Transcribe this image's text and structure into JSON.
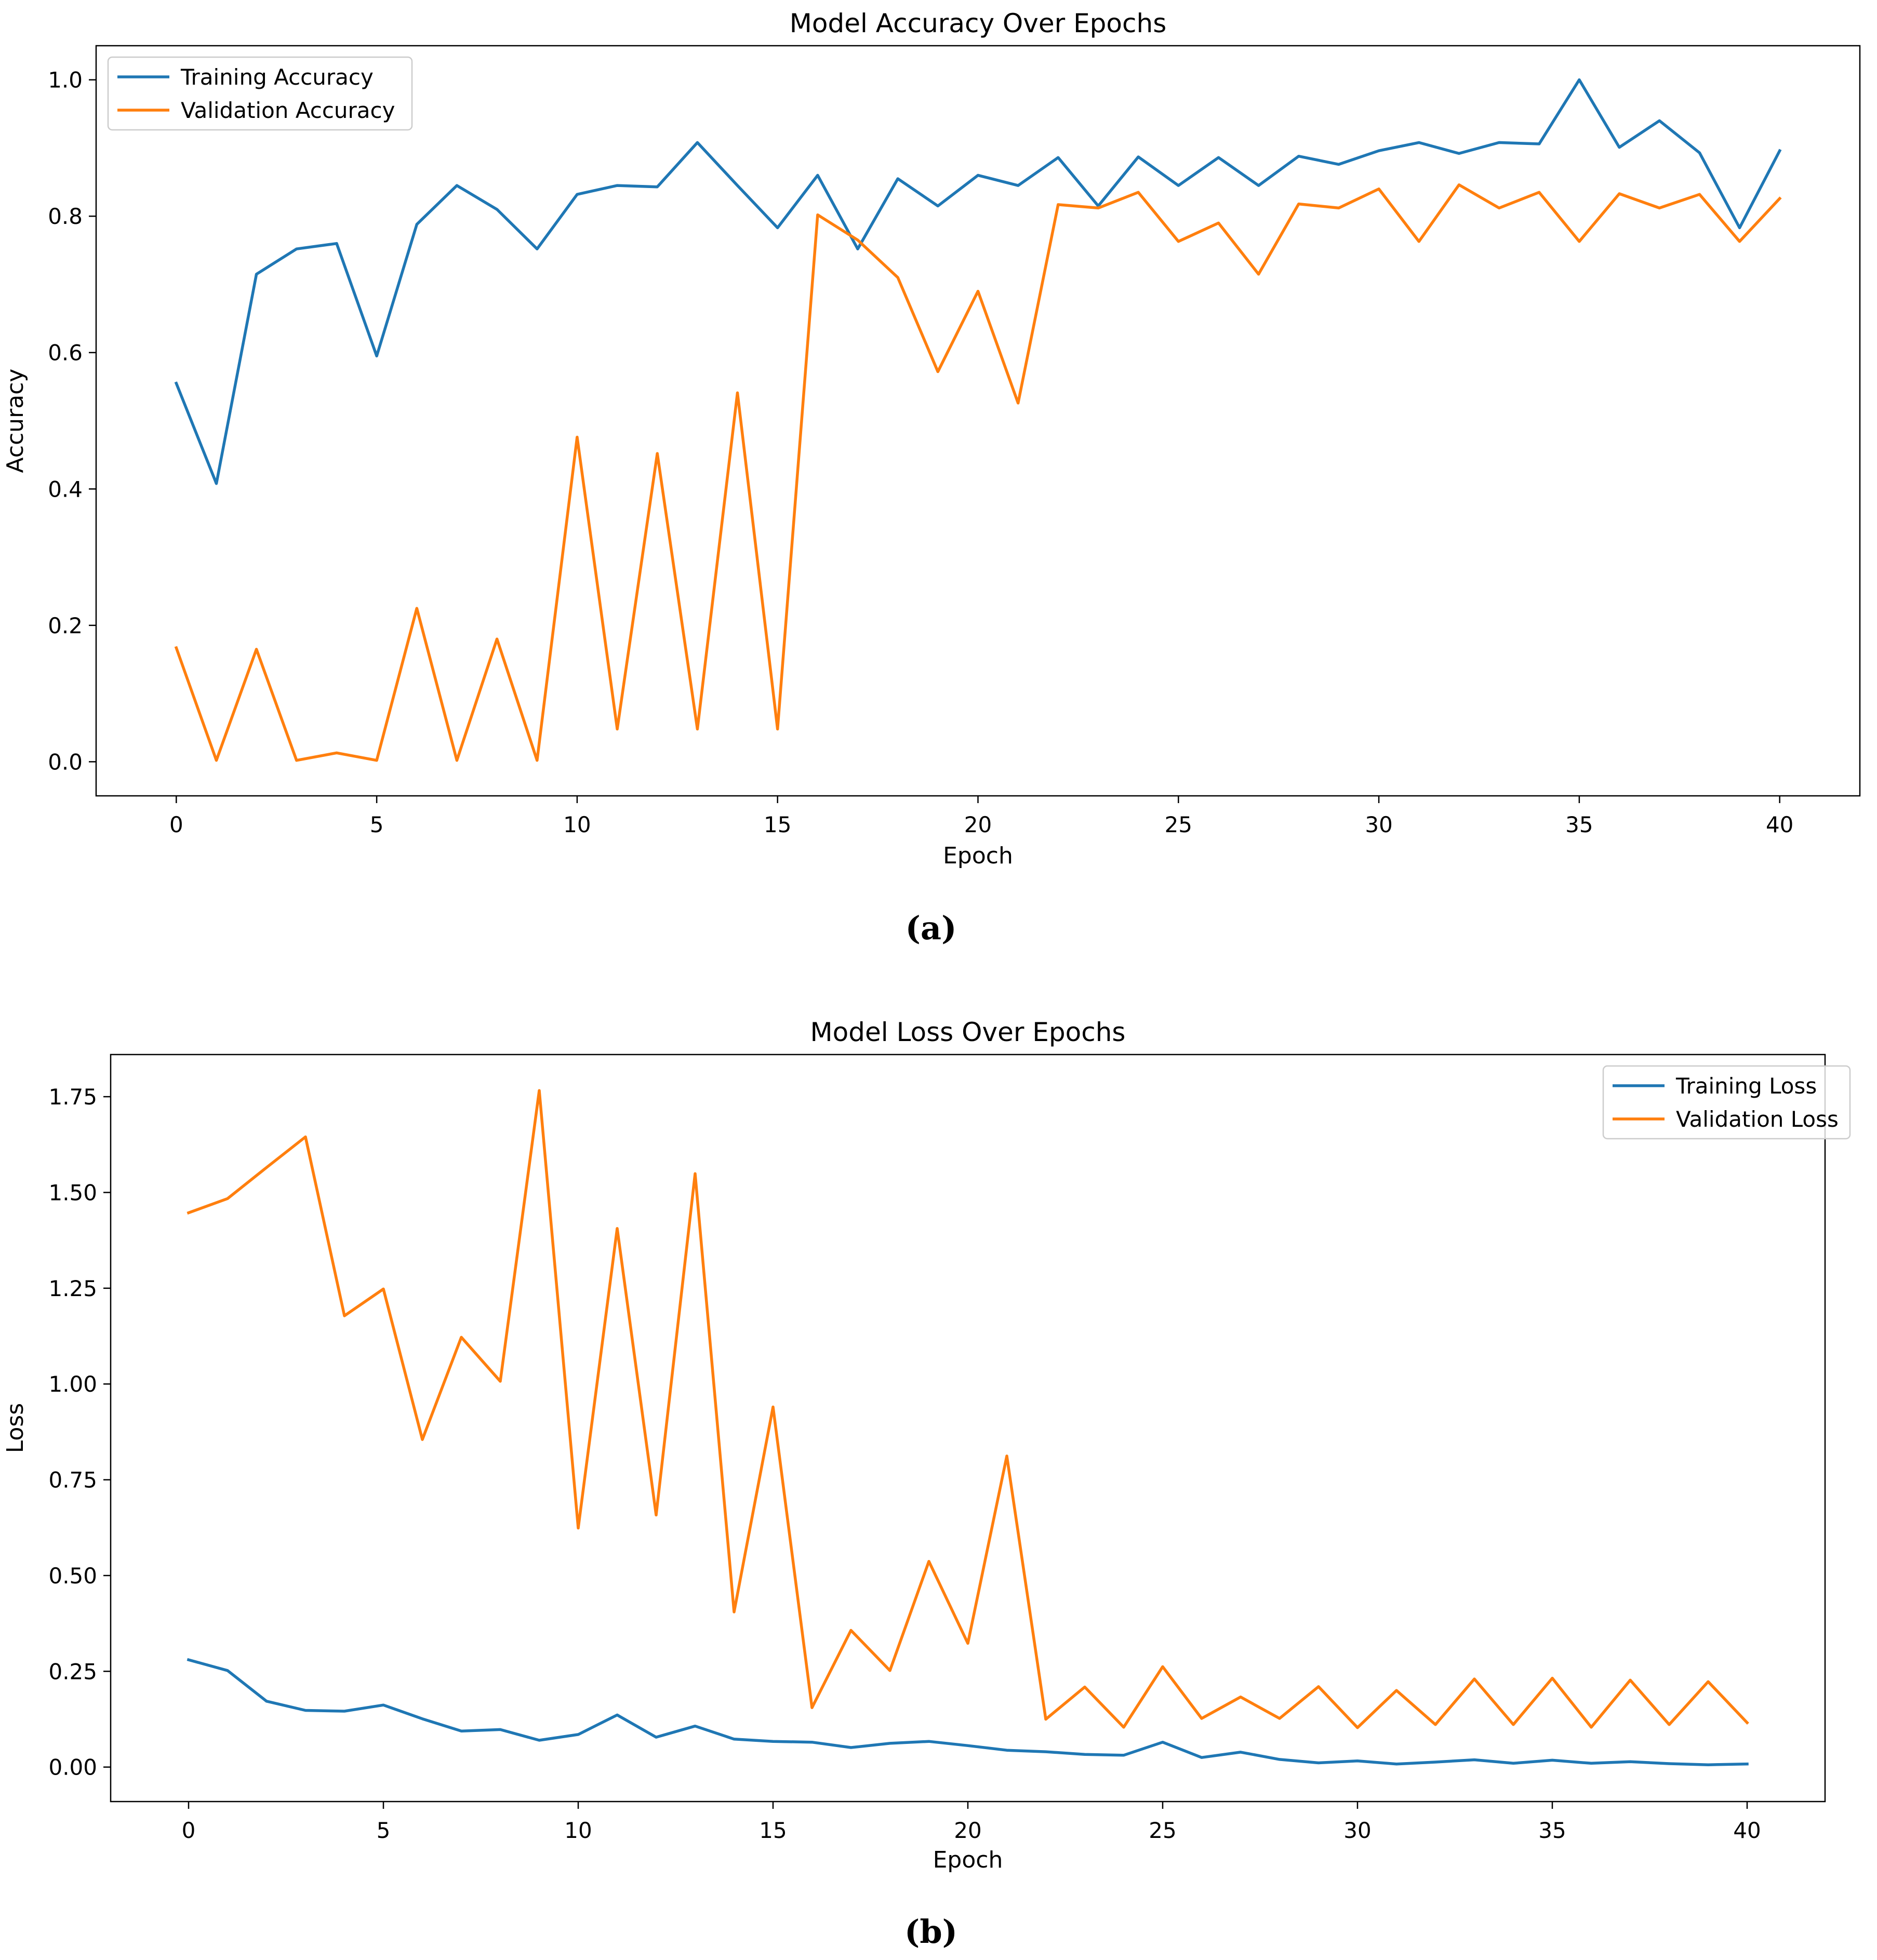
{
  "figure_labels": {
    "a": "(a)",
    "b": "(b)"
  },
  "chart_data": [
    {
      "type": "line",
      "title": "Model Accuracy Over Epochs",
      "xlabel": "Epoch",
      "ylabel": "Accuracy",
      "xlim": [
        -2,
        42
      ],
      "ylim": [
        -0.05,
        1.05
      ],
      "xticks": [
        0,
        5,
        10,
        15,
        20,
        25,
        30,
        35,
        40
      ],
      "yticks": [
        0.0,
        0.2,
        0.4,
        0.6,
        0.8,
        1.0
      ],
      "ytick_labels": [
        "0.0",
        "0.2",
        "0.4",
        "0.6",
        "0.8",
        "1.0"
      ],
      "legend": "top-left",
      "x": [
        0,
        1,
        2,
        3,
        4,
        5,
        6,
        7,
        8,
        9,
        10,
        11,
        12,
        13,
        14,
        15,
        16,
        17,
        18,
        19,
        20,
        21,
        22,
        23,
        24,
        25,
        26,
        27,
        28,
        29,
        30,
        31,
        32,
        33,
        34,
        35,
        36,
        37,
        38,
        39,
        40
      ],
      "series": [
        {
          "name": "Training Accuracy",
          "color": "#1f77b4",
          "values": [
            0.555,
            0.408,
            0.715,
            0.752,
            0.76,
            0.595,
            0.788,
            0.845,
            0.81,
            0.752,
            0.832,
            0.845,
            0.843,
            0.908,
            0.845,
            0.783,
            0.86,
            0.752,
            0.855,
            0.815,
            0.86,
            0.845,
            0.886,
            0.815,
            0.887,
            0.845,
            0.886,
            0.845,
            0.888,
            0.876,
            0.896,
            0.908,
            0.892,
            0.908,
            0.906,
            1.0,
            0.901,
            0.94,
            0.893,
            0.783,
            0.896
          ]
        },
        {
          "name": "Validation Accuracy",
          "color": "#ff7f0e",
          "values": [
            0.167,
            0.002,
            0.165,
            0.002,
            0.013,
            0.002,
            0.225,
            0.002,
            0.18,
            0.002,
            0.476,
            0.048,
            0.452,
            0.048,
            0.541,
            0.048,
            0.802,
            0.765,
            0.71,
            0.572,
            0.69,
            0.526,
            0.817,
            0.812,
            0.835,
            0.763,
            0.79,
            0.715,
            0.818,
            0.812,
            0.84,
            0.763,
            0.846,
            0.812,
            0.835,
            0.763,
            0.833,
            0.812,
            0.832,
            0.763,
            0.826
          ]
        }
      ]
    },
    {
      "type": "line",
      "title": "Model Loss Over Epochs",
      "xlabel": "Epoch",
      "ylabel": "Loss",
      "xlim": [
        -2,
        42
      ],
      "ylim": [
        -0.09,
        1.86
      ],
      "xticks": [
        0,
        5,
        10,
        15,
        20,
        25,
        30,
        35,
        40
      ],
      "yticks": [
        0.0,
        0.25,
        0.5,
        0.75,
        1.0,
        1.25,
        1.5,
        1.75
      ],
      "ytick_labels": [
        "0.00",
        "0.25",
        "0.50",
        "0.75",
        "1.00",
        "1.25",
        "1.50",
        "1.75"
      ],
      "legend": "top-right",
      "x": [
        0,
        1,
        2,
        3,
        4,
        5,
        6,
        7,
        8,
        9,
        10,
        11,
        12,
        13,
        14,
        15,
        16,
        17,
        18,
        19,
        20,
        21,
        22,
        23,
        24,
        25,
        26,
        27,
        28,
        29,
        30,
        31,
        32,
        33,
        34,
        35,
        36,
        37,
        38,
        39,
        40
      ],
      "series": [
        {
          "name": "Training Loss",
          "color": "#1f77b4",
          "values": [
            0.28,
            0.252,
            0.172,
            0.148,
            0.146,
            0.162,
            0.126,
            0.094,
            0.098,
            0.07,
            0.085,
            0.136,
            0.078,
            0.107,
            0.073,
            0.067,
            0.065,
            0.051,
            0.062,
            0.067,
            0.056,
            0.044,
            0.04,
            0.033,
            0.031,
            0.065,
            0.025,
            0.039,
            0.02,
            0.011,
            0.016,
            0.008,
            0.013,
            0.019,
            0.01,
            0.018,
            0.01,
            0.014,
            0.009,
            0.006,
            0.008
          ]
        },
        {
          "name": "Validation Loss",
          "color": "#ff7f0e",
          "values": [
            1.447,
            1.484,
            1.565,
            1.645,
            1.178,
            1.248,
            0.855,
            1.122,
            1.007,
            1.766,
            0.624,
            1.406,
            0.658,
            1.549,
            0.405,
            0.94,
            0.155,
            0.357,
            0.252,
            0.537,
            0.323,
            0.812,
            0.125,
            0.209,
            0.104,
            0.262,
            0.127,
            0.183,
            0.127,
            0.21,
            0.103,
            0.2,
            0.111,
            0.23,
            0.111,
            0.232,
            0.104,
            0.227,
            0.111,
            0.223,
            0.116
          ]
        }
      ]
    }
  ]
}
